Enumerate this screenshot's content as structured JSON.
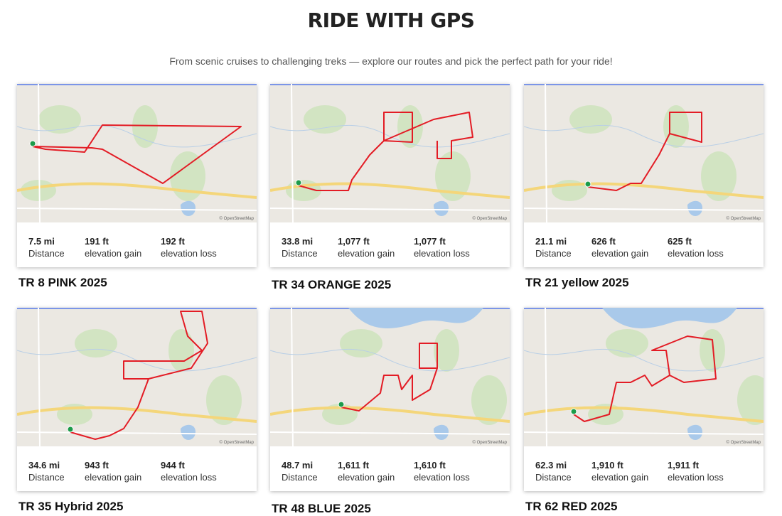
{
  "header": {
    "title": "RIDE WITH GPS",
    "subtitle": "From scenic cruises to challenging treks — explore our routes and pick the perfect path for your ride!"
  },
  "stat_labels": [
    "Distance",
    "elevation gain",
    "elevation loss"
  ],
  "map_attribution": "© OpenStreetMap",
  "routes": [
    {
      "title": "TR 8 PINK 2025",
      "distance": "7.5 mi",
      "gain": "191 ft",
      "loss": "192 ft"
    },
    {
      "title": "TR 34 ORANGE 2025",
      "distance": "33.8 mi",
      "gain": "1,077 ft",
      "loss": "1,077 ft"
    },
    {
      "title": "TR 21 yellow 2025",
      "distance": "21.1 mi",
      "gain": "626 ft",
      "loss": "625 ft"
    },
    {
      "title": "TR 35 Hybrid 2025",
      "distance": "34.6 mi",
      "gain": "943 ft",
      "loss": "944 ft"
    },
    {
      "title": "TR 48 BLUE 2025",
      "distance": "48.7 mi",
      "gain": "1,611 ft",
      "loss": "1,610 ft"
    },
    {
      "title": "TR 62 RED 2025",
      "distance": "62.3 mi",
      "gain": "1,910 ft",
      "loss": "1,911 ft"
    }
  ]
}
